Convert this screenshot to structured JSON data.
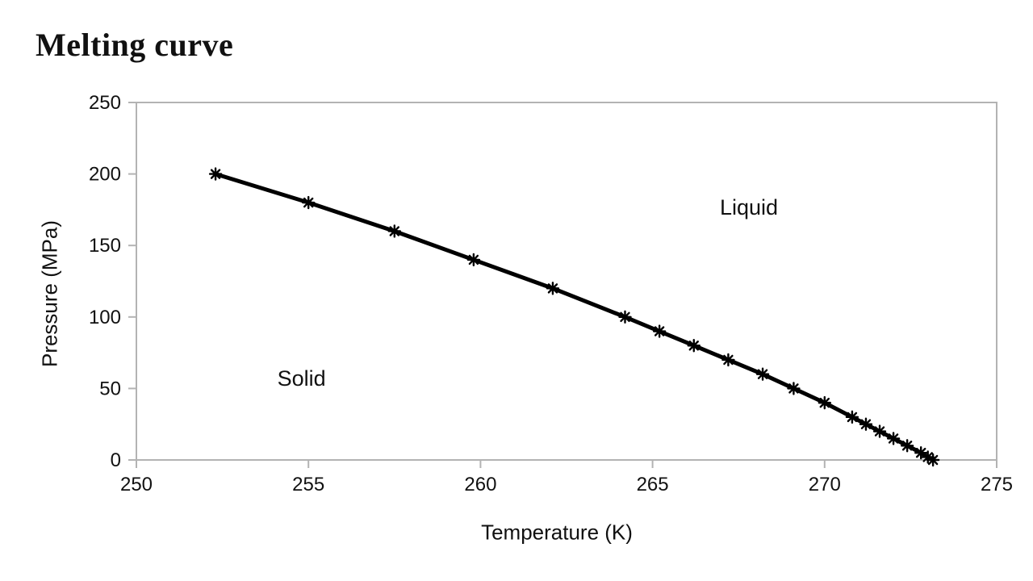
{
  "page": {
    "title": "Melting curve"
  },
  "chart_data": {
    "type": "line",
    "title": "Melting curve",
    "xlabel": "Temperature (K)",
    "ylabel": "Pressure (MPa)",
    "xlim": [
      250,
      275
    ],
    "ylim": [
      0,
      250
    ],
    "xticks": [
      250,
      255,
      260,
      265,
      270,
      275
    ],
    "yticks": [
      0,
      50,
      100,
      150,
      200,
      250
    ],
    "grid": false,
    "legend": "none",
    "line_color": "#000000",
    "line_width": 5,
    "marker": "asterisk",
    "marker_color": "#000000",
    "axis_color": "#b3b3b3",
    "series": [
      {
        "name": "melting curve",
        "points": [
          [
            252.3,
            200
          ],
          [
            255.0,
            180
          ],
          [
            257.5,
            160
          ],
          [
            259.8,
            140
          ],
          [
            262.1,
            120
          ],
          [
            264.2,
            100
          ],
          [
            265.2,
            90
          ],
          [
            266.2,
            80
          ],
          [
            267.2,
            70
          ],
          [
            268.2,
            60
          ],
          [
            269.1,
            50
          ],
          [
            270.0,
            40
          ],
          [
            270.8,
            30
          ],
          [
            271.2,
            25
          ],
          [
            271.6,
            20
          ],
          [
            272.0,
            15
          ],
          [
            272.4,
            10
          ],
          [
            272.8,
            5
          ],
          [
            273.0,
            2
          ],
          [
            273.15,
            0
          ]
        ]
      }
    ],
    "annotations": [
      {
        "text": "Solid",
        "at": [
          254.8,
          57.0
        ]
      },
      {
        "text": "Liquid",
        "at": [
          267.8,
          176.5
        ]
      }
    ]
  }
}
